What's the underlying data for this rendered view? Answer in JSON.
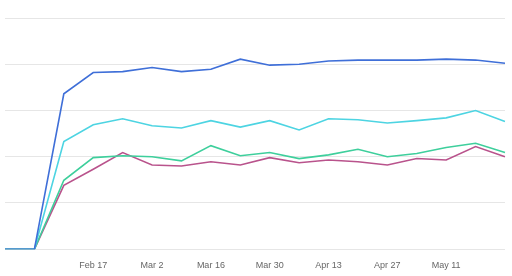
{
  "chart_data": {
    "type": "line",
    "categories": [
      null,
      null,
      null,
      "Feb 17",
      null,
      "Mar 2",
      null,
      "Mar 16",
      null,
      "Mar 30",
      null,
      "Apr 13",
      null,
      "Apr 27",
      null,
      "May 11",
      null,
      null
    ],
    "series": [
      {
        "color": "#3f6fd8",
        "values": [
          0,
          0,
          3.36,
          3.82,
          3.84,
          3.93,
          3.84,
          3.89,
          4.11,
          3.98,
          4.0,
          4.07,
          4.09,
          4.09,
          4.09,
          4.11,
          4.09,
          4.02
        ]
      },
      {
        "color": "#4dd4e2",
        "values": [
          0,
          0,
          2.33,
          2.69,
          2.82,
          2.67,
          2.62,
          2.78,
          2.64,
          2.78,
          2.58,
          2.82,
          2.8,
          2.73,
          2.78,
          2.84,
          3.0,
          2.76
        ]
      },
      {
        "color": "#3ecf9c",
        "values": [
          0,
          0,
          1.49,
          1.98,
          2.02,
          2.0,
          1.91,
          2.24,
          2.02,
          2.09,
          1.96,
          2.04,
          2.16,
          2.0,
          2.07,
          2.2,
          2.29,
          2.09
        ]
      },
      {
        "color": "#b9538c",
        "values": [
          0,
          0,
          1.38,
          1.73,
          2.09,
          1.82,
          1.8,
          1.89,
          1.82,
          1.98,
          1.87,
          1.93,
          1.89,
          1.82,
          1.96,
          1.93,
          2.22,
          2.0
        ]
      }
    ],
    "ylim": [
      0,
      5
    ],
    "yticks": [
      0,
      1,
      2,
      3,
      4,
      5
    ],
    "grid": true,
    "tick_labels": "x"
  }
}
